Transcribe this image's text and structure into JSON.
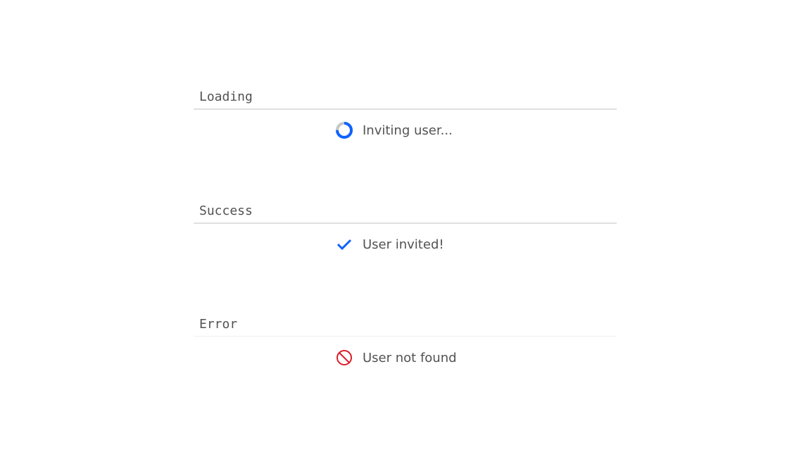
{
  "sections": [
    {
      "title": "Loading",
      "message": "Inviting user...",
      "icon": "loading-spinner-icon"
    },
    {
      "title": "Success",
      "message": "User invited!",
      "icon": "checkmark-icon"
    },
    {
      "title": "Error",
      "message": "User not found",
      "icon": "error-blocked-icon"
    }
  ],
  "colors": {
    "accent": "#0f62fe",
    "error": "#da1e28",
    "track": "#c6c6c6"
  }
}
